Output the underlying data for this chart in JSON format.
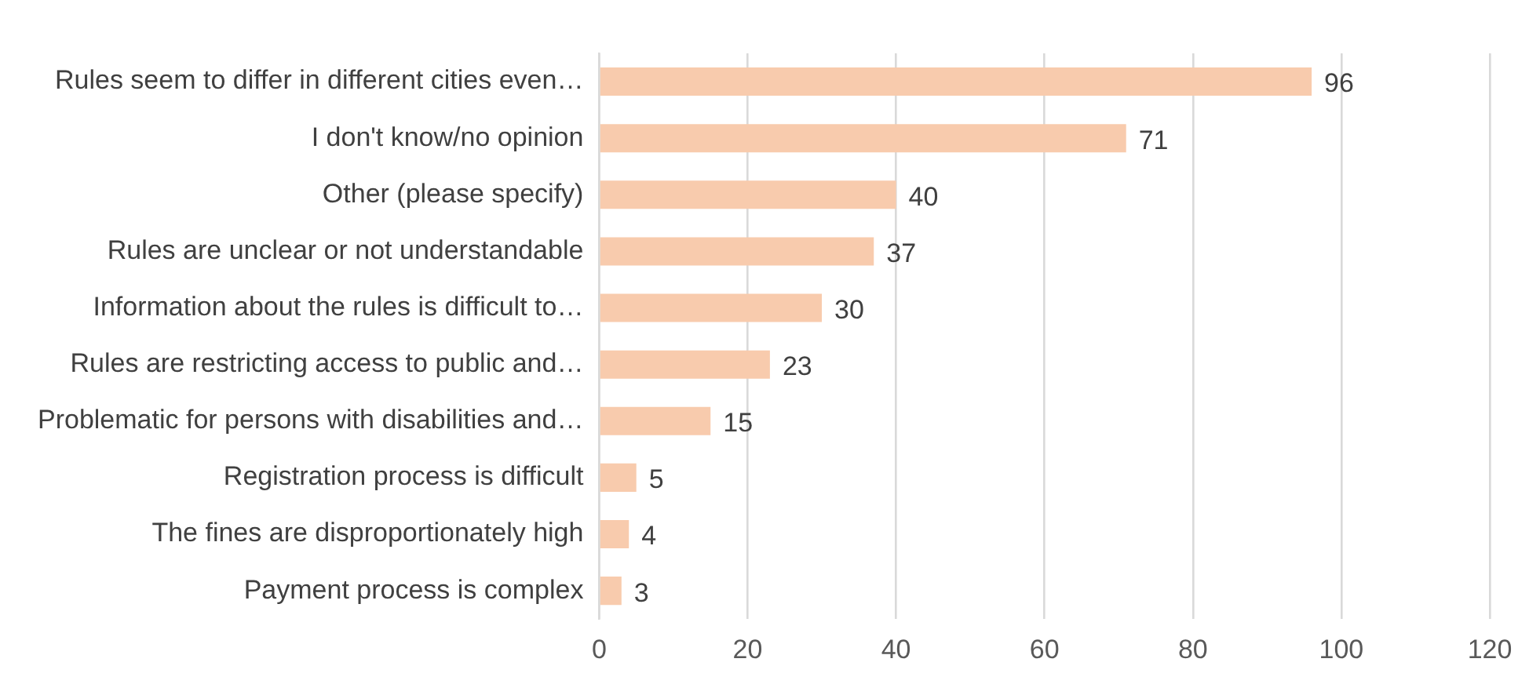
{
  "chart_data": {
    "type": "bar",
    "orientation": "horizontal",
    "categories": [
      "Rules seem to differ in different cities even…",
      "I don't know/no opinion",
      "Other (please specify)",
      "Rules are unclear or not understandable",
      "Information about the rules is difficult to…",
      "Rules are restricting access to public and…",
      "Problematic for persons with disabilities and…",
      "Registration process is difficult",
      "The fines are disproportionately high",
      "Payment process is complex"
    ],
    "values": [
      96,
      71,
      40,
      37,
      30,
      23,
      15,
      5,
      4,
      3
    ],
    "color": "#f8cbad",
    "xlim": [
      0,
      120
    ],
    "xticks": [
      0,
      20,
      40,
      60,
      80,
      100,
      120
    ],
    "grid": "x",
    "legend": false,
    "data_labels": true
  }
}
